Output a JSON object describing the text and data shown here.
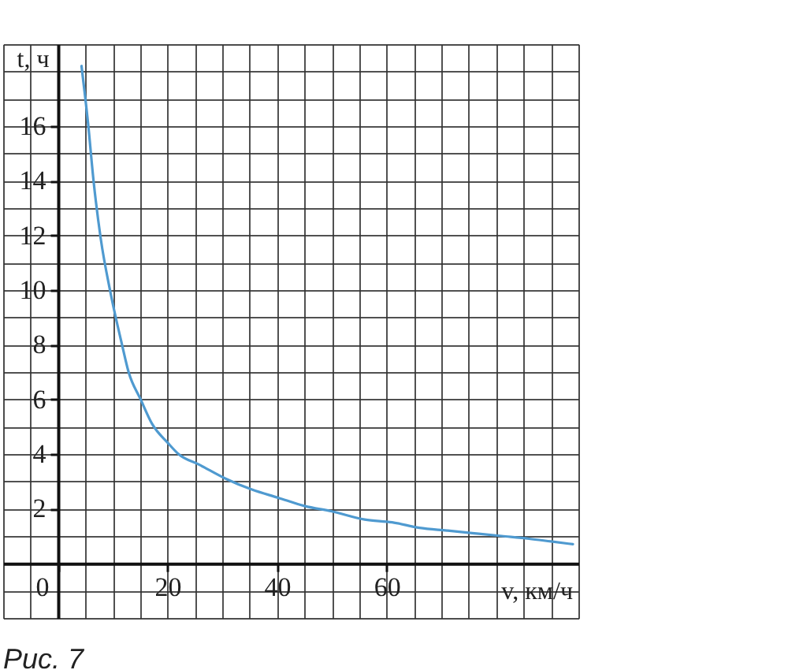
{
  "chart_data": {
    "type": "line",
    "xlabel": "v, км/ч",
    "ylabel": "t, ч",
    "annotations": [
      "Рис. 7"
    ],
    "x": [
      4.3,
      5.5,
      6.5,
      7.8,
      9.6,
      11.7,
      12.9,
      15.1,
      17.2,
      20.1,
      22,
      25.9,
      30.6,
      35.4,
      40.2,
      45,
      50,
      56,
      61,
      66,
      71,
      76,
      81,
      86,
      90,
      94
    ],
    "values": [
      18.2,
      16.1,
      14.0,
      11.9,
      9.9,
      8.0,
      7.0,
      6.0,
      5.1,
      4.4,
      4.0,
      3.6,
      3.1,
      2.7,
      2.4,
      2.1,
      1.9,
      1.6,
      1.5,
      1.3,
      1.2,
      1.1,
      1.0,
      0.9,
      0.8,
      0.7
    ],
    "color": "#4f9ad0",
    "xlim": [
      -10,
      95
    ],
    "ylim": [
      -2,
      19
    ],
    "xticks": [
      {
        "value": -10,
        "label": null
      },
      {
        "value": -5,
        "label": null
      },
      0,
      {
        "value": 5,
        "label": null
      },
      {
        "value": 10,
        "label": null
      },
      {
        "value": 15,
        "label": null
      },
      20,
      {
        "value": 25,
        "label": null
      },
      {
        "value": 30,
        "label": null
      },
      {
        "value": 35,
        "label": null
      },
      40,
      {
        "value": 45,
        "label": null
      },
      {
        "value": 50,
        "label": null
      },
      {
        "value": 55,
        "label": null
      },
      60,
      {
        "value": 65,
        "label": null
      },
      {
        "value": 70,
        "label": null
      },
      {
        "value": 75,
        "label": null
      },
      {
        "value": 80,
        "label": null
      },
      {
        "value": 85,
        "label": null
      },
      {
        "value": 90,
        "label": null
      },
      {
        "value": 95,
        "label": null
      }
    ],
    "yticks": [
      {
        "value": -2,
        "label": null
      },
      {
        "value": -1,
        "label": null
      },
      {
        "value": 0,
        "label": null
      },
      {
        "value": 1,
        "label": null
      },
      2,
      {
        "value": 3,
        "label": null
      },
      4,
      {
        "value": 5,
        "label": null
      },
      6,
      {
        "value": 7,
        "label": null
      },
      8,
      {
        "value": 9,
        "label": null
      },
      10,
      {
        "value": 11,
        "label": null
      },
      12,
      {
        "value": 13,
        "label": null
      },
      14,
      {
        "value": 15,
        "label": null
      },
      16,
      {
        "value": 17,
        "label": null
      },
      {
        "value": 18,
        "label": null
      },
      {
        "value": 19,
        "label": null
      }
    ],
    "grid": true
  }
}
